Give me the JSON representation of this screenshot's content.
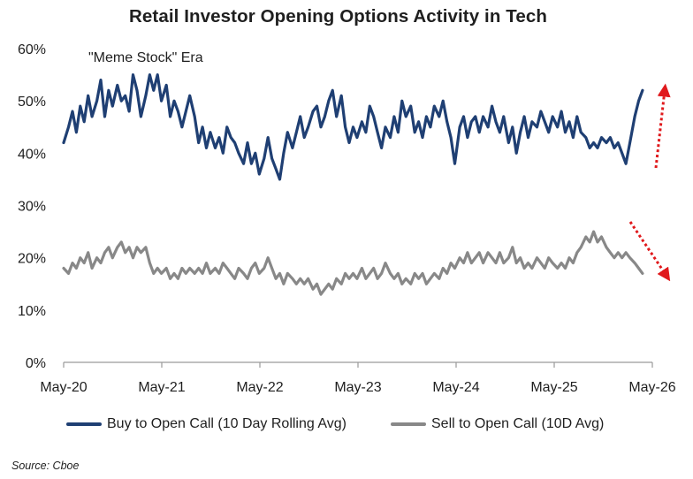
{
  "source_note": "Source: Cboe",
  "chart_data": {
    "type": "line",
    "title": "Retail Investor Opening Options Activity in Tech",
    "xlabel": "",
    "ylabel": "",
    "x_tick_labels": [
      "May-20",
      "May-21",
      "May-22",
      "May-23",
      "May-24",
      "May-25",
      "May-26"
    ],
    "x_range": [
      2020.33,
      2026.35
    ],
    "ylim": [
      0,
      60
    ],
    "y_ticks": [
      0,
      10,
      20,
      30,
      40,
      50,
      60
    ],
    "y_tick_labels": [
      "0%",
      "10%",
      "20%",
      "30%",
      "40%",
      "50%",
      "60%"
    ],
    "grid": false,
    "legend_position": "bottom",
    "annotation": "\"Meme Stock\" Era",
    "arrow_color": "#e0191c",
    "series": [
      {
        "name": "Buy to Open Call (10 Day Rolling Avg)",
        "color": "#1f3f73",
        "points": [
          [
            2020.33,
            42
          ],
          [
            2020.38,
            45
          ],
          [
            2020.42,
            48
          ],
          [
            2020.46,
            44
          ],
          [
            2020.5,
            49
          ],
          [
            2020.54,
            46
          ],
          [
            2020.58,
            51
          ],
          [
            2020.62,
            47
          ],
          [
            2020.67,
            50
          ],
          [
            2020.71,
            54
          ],
          [
            2020.75,
            47
          ],
          [
            2020.79,
            52
          ],
          [
            2020.83,
            49
          ],
          [
            2020.88,
            53
          ],
          [
            2020.92,
            50
          ],
          [
            2020.96,
            51
          ],
          [
            2021.0,
            48
          ],
          [
            2021.04,
            55
          ],
          [
            2021.08,
            52
          ],
          [
            2021.12,
            47
          ],
          [
            2021.17,
            51
          ],
          [
            2021.21,
            55
          ],
          [
            2021.25,
            52
          ],
          [
            2021.29,
            55
          ],
          [
            2021.33,
            50
          ],
          [
            2021.38,
            53
          ],
          [
            2021.42,
            47
          ],
          [
            2021.46,
            50
          ],
          [
            2021.5,
            48
          ],
          [
            2021.54,
            45
          ],
          [
            2021.58,
            48
          ],
          [
            2021.62,
            51
          ],
          [
            2021.67,
            47
          ],
          [
            2021.71,
            42
          ],
          [
            2021.75,
            45
          ],
          [
            2021.79,
            41
          ],
          [
            2021.83,
            44
          ],
          [
            2021.88,
            41
          ],
          [
            2021.92,
            43
          ],
          [
            2021.96,
            40
          ],
          [
            2022.0,
            45
          ],
          [
            2022.04,
            43
          ],
          [
            2022.08,
            42
          ],
          [
            2022.12,
            40
          ],
          [
            2022.17,
            38
          ],
          [
            2022.21,
            42
          ],
          [
            2022.25,
            38
          ],
          [
            2022.29,
            40
          ],
          [
            2022.33,
            36
          ],
          [
            2022.38,
            39
          ],
          [
            2022.42,
            43
          ],
          [
            2022.46,
            39
          ],
          [
            2022.5,
            37
          ],
          [
            2022.54,
            35
          ],
          [
            2022.58,
            40
          ],
          [
            2022.62,
            44
          ],
          [
            2022.67,
            41
          ],
          [
            2022.71,
            44
          ],
          [
            2022.75,
            47
          ],
          [
            2022.79,
            43
          ],
          [
            2022.83,
            45
          ],
          [
            2022.88,
            48
          ],
          [
            2022.92,
            49
          ],
          [
            2022.96,
            45
          ],
          [
            2023.0,
            47
          ],
          [
            2023.04,
            50
          ],
          [
            2023.08,
            52
          ],
          [
            2023.12,
            47
          ],
          [
            2023.17,
            51
          ],
          [
            2023.21,
            45
          ],
          [
            2023.25,
            42
          ],
          [
            2023.29,
            45
          ],
          [
            2023.33,
            43
          ],
          [
            2023.38,
            46
          ],
          [
            2023.42,
            44
          ],
          [
            2023.46,
            49
          ],
          [
            2023.5,
            47
          ],
          [
            2023.54,
            44
          ],
          [
            2023.58,
            41
          ],
          [
            2023.62,
            45
          ],
          [
            2023.67,
            43
          ],
          [
            2023.71,
            47
          ],
          [
            2023.75,
            44
          ],
          [
            2023.79,
            50
          ],
          [
            2023.83,
            47
          ],
          [
            2023.88,
            49
          ],
          [
            2023.92,
            44
          ],
          [
            2023.96,
            46
          ],
          [
            2024.0,
            43
          ],
          [
            2024.04,
            47
          ],
          [
            2024.08,
            45
          ],
          [
            2024.12,
            49
          ],
          [
            2024.17,
            47
          ],
          [
            2024.21,
            50
          ],
          [
            2024.25,
            46
          ],
          [
            2024.29,
            43
          ],
          [
            2024.33,
            38
          ],
          [
            2024.38,
            45
          ],
          [
            2024.42,
            47
          ],
          [
            2024.46,
            43
          ],
          [
            2024.5,
            46
          ],
          [
            2024.54,
            47
          ],
          [
            2024.58,
            44
          ],
          [
            2024.62,
            47
          ],
          [
            2024.67,
            45
          ],
          [
            2024.71,
            49
          ],
          [
            2024.75,
            46
          ],
          [
            2024.79,
            44
          ],
          [
            2024.83,
            47
          ],
          [
            2024.88,
            42
          ],
          [
            2024.92,
            45
          ],
          [
            2024.96,
            40
          ],
          [
            2025.0,
            44
          ],
          [
            2025.04,
            47
          ],
          [
            2025.08,
            43
          ],
          [
            2025.12,
            46
          ],
          [
            2025.17,
            45
          ],
          [
            2025.21,
            48
          ],
          [
            2025.25,
            46
          ],
          [
            2025.29,
            44
          ],
          [
            2025.33,
            47
          ],
          [
            2025.38,
            45
          ],
          [
            2025.42,
            48
          ],
          [
            2025.46,
            44
          ],
          [
            2025.5,
            46
          ],
          [
            2025.54,
            43
          ],
          [
            2025.58,
            47
          ],
          [
            2025.62,
            44
          ],
          [
            2025.67,
            43
          ],
          [
            2025.71,
            41
          ],
          [
            2025.75,
            42
          ],
          [
            2025.79,
            41
          ],
          [
            2025.83,
            43
          ],
          [
            2025.88,
            42
          ],
          [
            2025.92,
            43
          ],
          [
            2025.96,
            41
          ],
          [
            2026.0,
            42
          ],
          [
            2026.04,
            40
          ],
          [
            2026.08,
            38
          ],
          [
            2026.12,
            42
          ],
          [
            2026.17,
            47
          ],
          [
            2026.21,
            50
          ],
          [
            2026.25,
            52
          ]
        ]
      },
      {
        "name": "Sell to Open Call (10D Avg)",
        "color": "#888888",
        "points": [
          [
            2020.33,
            18
          ],
          [
            2020.38,
            17
          ],
          [
            2020.42,
            19
          ],
          [
            2020.46,
            18
          ],
          [
            2020.5,
            20
          ],
          [
            2020.54,
            19
          ],
          [
            2020.58,
            21
          ],
          [
            2020.62,
            18
          ],
          [
            2020.67,
            20
          ],
          [
            2020.71,
            19
          ],
          [
            2020.75,
            21
          ],
          [
            2020.79,
            22
          ],
          [
            2020.83,
            20
          ],
          [
            2020.88,
            22
          ],
          [
            2020.92,
            23
          ],
          [
            2020.96,
            21
          ],
          [
            2021.0,
            22
          ],
          [
            2021.04,
            20
          ],
          [
            2021.08,
            22
          ],
          [
            2021.12,
            21
          ],
          [
            2021.17,
            22
          ],
          [
            2021.21,
            19
          ],
          [
            2021.25,
            17
          ],
          [
            2021.29,
            18
          ],
          [
            2021.33,
            17
          ],
          [
            2021.38,
            18
          ],
          [
            2021.42,
            16
          ],
          [
            2021.46,
            17
          ],
          [
            2021.5,
            16
          ],
          [
            2021.54,
            18
          ],
          [
            2021.58,
            17
          ],
          [
            2021.62,
            18
          ],
          [
            2021.67,
            17
          ],
          [
            2021.71,
            18
          ],
          [
            2021.75,
            17
          ],
          [
            2021.79,
            19
          ],
          [
            2021.83,
            17
          ],
          [
            2021.88,
            18
          ],
          [
            2021.92,
            17
          ],
          [
            2021.96,
            19
          ],
          [
            2022.0,
            18
          ],
          [
            2022.04,
            17
          ],
          [
            2022.08,
            16
          ],
          [
            2022.12,
            18
          ],
          [
            2022.17,
            17
          ],
          [
            2022.21,
            16
          ],
          [
            2022.25,
            18
          ],
          [
            2022.29,
            19
          ],
          [
            2022.33,
            17
          ],
          [
            2022.38,
            18
          ],
          [
            2022.42,
            20
          ],
          [
            2022.46,
            18
          ],
          [
            2022.5,
            16
          ],
          [
            2022.54,
            17
          ],
          [
            2022.58,
            15
          ],
          [
            2022.62,
            17
          ],
          [
            2022.67,
            16
          ],
          [
            2022.71,
            15
          ],
          [
            2022.75,
            16
          ],
          [
            2022.79,
            15
          ],
          [
            2022.83,
            16
          ],
          [
            2022.88,
            14
          ],
          [
            2022.92,
            15
          ],
          [
            2022.96,
            13
          ],
          [
            2023.0,
            14
          ],
          [
            2023.04,
            15
          ],
          [
            2023.08,
            14
          ],
          [
            2023.12,
            16
          ],
          [
            2023.17,
            15
          ],
          [
            2023.21,
            17
          ],
          [
            2023.25,
            16
          ],
          [
            2023.29,
            17
          ],
          [
            2023.33,
            16
          ],
          [
            2023.38,
            18
          ],
          [
            2023.42,
            16
          ],
          [
            2023.46,
            17
          ],
          [
            2023.5,
            18
          ],
          [
            2023.54,
            16
          ],
          [
            2023.58,
            17
          ],
          [
            2023.62,
            19
          ],
          [
            2023.67,
            17
          ],
          [
            2023.71,
            16
          ],
          [
            2023.75,
            17
          ],
          [
            2023.79,
            15
          ],
          [
            2023.83,
            16
          ],
          [
            2023.88,
            15
          ],
          [
            2023.92,
            17
          ],
          [
            2023.96,
            16
          ],
          [
            2024.0,
            17
          ],
          [
            2024.04,
            15
          ],
          [
            2024.08,
            16
          ],
          [
            2024.12,
            17
          ],
          [
            2024.17,
            16
          ],
          [
            2024.21,
            18
          ],
          [
            2024.25,
            17
          ],
          [
            2024.29,
            19
          ],
          [
            2024.33,
            18
          ],
          [
            2024.38,
            20
          ],
          [
            2024.42,
            19
          ],
          [
            2024.46,
            21
          ],
          [
            2024.5,
            19
          ],
          [
            2024.54,
            20
          ],
          [
            2024.58,
            21
          ],
          [
            2024.62,
            19
          ],
          [
            2024.67,
            21
          ],
          [
            2024.71,
            20
          ],
          [
            2024.75,
            19
          ],
          [
            2024.79,
            21
          ],
          [
            2024.83,
            19
          ],
          [
            2024.88,
            20
          ],
          [
            2024.92,
            22
          ],
          [
            2024.96,
            19
          ],
          [
            2025.0,
            20
          ],
          [
            2025.04,
            18
          ],
          [
            2025.08,
            19
          ],
          [
            2025.12,
            18
          ],
          [
            2025.17,
            20
          ],
          [
            2025.21,
            19
          ],
          [
            2025.25,
            18
          ],
          [
            2025.29,
            20
          ],
          [
            2025.33,
            19
          ],
          [
            2025.38,
            18
          ],
          [
            2025.42,
            19
          ],
          [
            2025.46,
            18
          ],
          [
            2025.5,
            20
          ],
          [
            2025.54,
            19
          ],
          [
            2025.58,
            21
          ],
          [
            2025.62,
            22
          ],
          [
            2025.67,
            24
          ],
          [
            2025.71,
            23
          ],
          [
            2025.75,
            25
          ],
          [
            2025.79,
            23
          ],
          [
            2025.83,
            24
          ],
          [
            2025.88,
            22
          ],
          [
            2025.92,
            21
          ],
          [
            2025.96,
            20
          ],
          [
            2026.0,
            21
          ],
          [
            2026.04,
            20
          ],
          [
            2026.08,
            21
          ],
          [
            2026.12,
            20
          ],
          [
            2026.17,
            19
          ],
          [
            2026.21,
            18
          ],
          [
            2026.25,
            17
          ]
        ]
      }
    ]
  }
}
